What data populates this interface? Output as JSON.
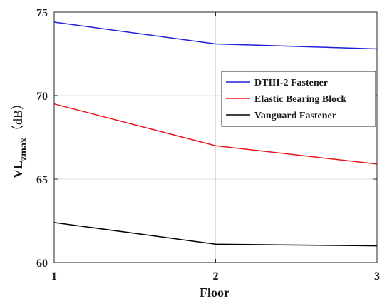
{
  "chart_data": {
    "type": "line",
    "xlabel": "Floor",
    "ylabel_main": "VL",
    "ylabel_sub": "zmax",
    "ylabel_unit": "（dB）",
    "xlim": [
      1,
      3
    ],
    "ylim": [
      60,
      75
    ],
    "x_ticks": [
      1,
      2,
      3
    ],
    "y_ticks": [
      60,
      65,
      70,
      75
    ],
    "grid": true,
    "legend_position": "right",
    "x": [
      1,
      2,
      3
    ],
    "series": [
      {
        "name": "DTIII-2 Fastener",
        "color": "#1f1fd6",
        "values": [
          74.4,
          73.1,
          72.8
        ]
      },
      {
        "name": "Elastic Bearing Block",
        "color": "#e8141b",
        "values": [
          69.5,
          67.0,
          65.9
        ]
      },
      {
        "name": "Vanguard Fastener",
        "color": "#000000",
        "values": [
          62.4,
          61.1,
          61.0
        ]
      }
    ]
  }
}
